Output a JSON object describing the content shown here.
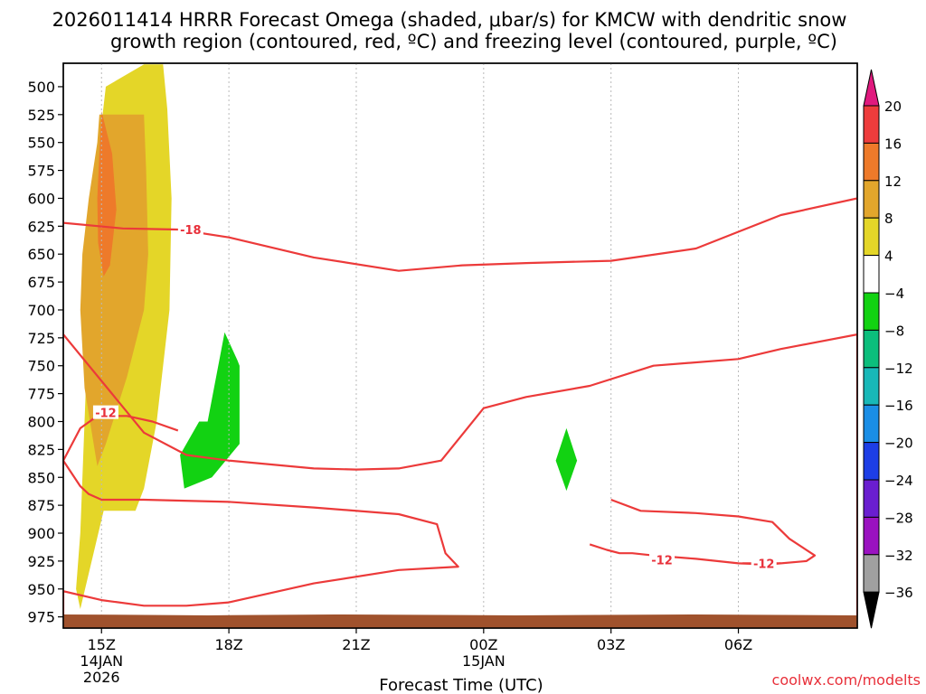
{
  "chart_data": {
    "type": "heatmap",
    "title_line1": "2026011414 HRRR Forecast Omega (shaded, μbar/s) for KMCW with dendritic snow",
    "title_line2": "growth region (contoured, red, ºC) and freezing level (contoured, purple, ºC)",
    "xlabel": "Forecast Time (UTC)",
    "credit": "coolwx.com/modelts",
    "x_hours_range": [
      -0.9,
      17.8
    ],
    "y_pressure_range": [
      479,
      985
    ],
    "y_ticks": [
      500,
      525,
      550,
      575,
      600,
      625,
      650,
      675,
      700,
      725,
      750,
      775,
      800,
      825,
      850,
      875,
      900,
      925,
      950,
      975
    ],
    "x_ticks": [
      {
        "hour": 0,
        "label": "15Z",
        "sub1": "14JAN",
        "sub2": "2026"
      },
      {
        "hour": 3,
        "label": "18Z",
        "sub1": "",
        "sub2": ""
      },
      {
        "hour": 6,
        "label": "21Z",
        "sub1": "",
        "sub2": ""
      },
      {
        "hour": 9,
        "label": "00Z",
        "sub1": "15JAN",
        "sub2": ""
      },
      {
        "hour": 12,
        "label": "03Z",
        "sub1": "",
        "sub2": ""
      },
      {
        "hour": 15,
        "label": "06Z",
        "sub1": "",
        "sub2": ""
      }
    ],
    "colorbar": {
      "labels": [
        "20",
        "16",
        "12",
        "8",
        "4",
        "−4",
        "−8",
        "−12",
        "−16",
        "−20",
        "−24",
        "−28",
        "−32",
        "−36"
      ],
      "colors": [
        "#ee3c3c",
        "#ee7a2a",
        "#e2a62c",
        "#e4d628",
        "#ffffff",
        "#12d212",
        "#0cbe7c",
        "#18b8b8",
        "#1a8ee6",
        "#1d3ee6",
        "#6a1ed0",
        "#9a12c0",
        "#a0a0a0"
      ],
      "top_arrow_color": "#e0197e",
      "bottom_arrow_color": "#000000"
    },
    "omega_regions": [
      {
        "level": "4 to 8",
        "color": "#e4d628",
        "points": [
          [
            -0.5,
            968
          ],
          [
            -0.6,
            950
          ],
          [
            -0.5,
            900
          ],
          [
            -0.4,
            800
          ],
          [
            -0.3,
            700
          ],
          [
            -0.2,
            600
          ],
          [
            0.1,
            500
          ],
          [
            1.0,
            480
          ],
          [
            1.45,
            480
          ],
          [
            1.55,
            520
          ],
          [
            1.65,
            600
          ],
          [
            1.6,
            700
          ],
          [
            1.3,
            800
          ],
          [
            1.0,
            860
          ],
          [
            0.8,
            880
          ],
          [
            0.05,
            880
          ]
        ]
      },
      {
        "level": "8 to 12",
        "color": "#e2a62c",
        "points": [
          [
            -0.4,
            770
          ],
          [
            -0.5,
            700
          ],
          [
            -0.45,
            650
          ],
          [
            -0.3,
            600
          ],
          [
            -0.1,
            550
          ],
          [
            -0.05,
            525
          ],
          [
            1.0,
            525
          ],
          [
            1.05,
            575
          ],
          [
            1.1,
            650
          ],
          [
            1.0,
            700
          ],
          [
            0.6,
            760
          ],
          [
            0.1,
            820
          ],
          [
            -0.1,
            840
          ]
        ]
      },
      {
        "level": "12 to 16",
        "color": "#ee7a2a",
        "points": [
          [
            -0.1,
            600
          ],
          [
            -0.05,
            560
          ],
          [
            0.0,
            522
          ],
          [
            0.25,
            560
          ],
          [
            0.35,
            610
          ],
          [
            0.2,
            660
          ],
          [
            0.05,
            670
          ],
          [
            -0.08,
            640
          ]
        ]
      },
      {
        "level": "-8 to -4",
        "color": "#12d212",
        "points": [
          [
            2.9,
            720
          ],
          [
            2.5,
            800
          ],
          [
            2.3,
            800
          ],
          [
            1.85,
            830
          ],
          [
            1.95,
            860
          ],
          [
            2.6,
            850
          ],
          [
            3.25,
            820
          ],
          [
            3.25,
            750
          ],
          [
            3.2,
            745
          ]
        ]
      },
      {
        "level": "-8 to -4",
        "color": "#12d212",
        "points": [
          [
            10.95,
            806
          ],
          [
            11.2,
            835
          ],
          [
            10.95,
            862
          ],
          [
            10.7,
            835
          ]
        ]
      }
    ],
    "contours_degC": [
      {
        "label": "-18",
        "label_at": [
          2.1,
          628
        ],
        "points": [
          [
            -0.9,
            622
          ],
          [
            0.5,
            627
          ],
          [
            1.8,
            628
          ],
          [
            3.0,
            635
          ],
          [
            5.0,
            653
          ],
          [
            7.0,
            665
          ],
          [
            8.5,
            660
          ],
          [
            10.0,
            658
          ],
          [
            12.0,
            656
          ],
          [
            14.0,
            645
          ],
          [
            15.0,
            630
          ],
          [
            16.0,
            615
          ],
          [
            17.8,
            600
          ]
        ]
      },
      {
        "label": "-12",
        "label_at": [
          0.1,
          792
        ],
        "points": [
          [
            -0.9,
            722
          ],
          [
            1.0,
            810
          ],
          [
            2.0,
            830
          ],
          [
            3.0,
            835
          ],
          [
            5.0,
            842
          ],
          [
            6.0,
            843
          ],
          [
            7.0,
            842
          ],
          [
            8.0,
            835
          ],
          [
            9.0,
            788
          ],
          [
            10.0,
            778
          ],
          [
            11.5,
            768
          ],
          [
            13.0,
            750
          ],
          [
            15.0,
            744
          ],
          [
            16.0,
            735
          ],
          [
            17.8,
            722
          ],
          [
            17.8,
            985
          ],
          [
            -0.9,
            985
          ],
          [
            -0.9,
            952
          ],
          [
            0.0,
            960
          ],
          [
            1.0,
            965
          ],
          [
            2.0,
            965
          ],
          [
            3.0,
            962
          ],
          [
            5.0,
            945
          ],
          [
            7.0,
            933
          ],
          [
            8.4,
            930
          ],
          [
            8.1,
            918
          ],
          [
            7.9,
            892
          ],
          [
            7.0,
            883
          ],
          [
            5.0,
            877
          ],
          [
            3.0,
            872
          ],
          [
            1.0,
            870
          ],
          [
            0.0,
            870
          ],
          [
            -0.3,
            865
          ],
          [
            -0.5,
            858
          ],
          [
            -0.9,
            835
          ],
          [
            -0.5,
            806
          ],
          [
            -0.1,
            795
          ],
          [
            0.6,
            795
          ],
          [
            1.2,
            800
          ],
          [
            1.8,
            808
          ]
        ]
      },
      {
        "label": "-12",
        "label_at": [
          13.2,
          924
        ],
        "points": [
          [
            12.0,
            870
          ],
          [
            12.7,
            880
          ],
          [
            14.0,
            882
          ],
          [
            15.0,
            885
          ],
          [
            15.8,
            890
          ],
          [
            16.2,
            905
          ],
          [
            16.8,
            920
          ],
          [
            16.6,
            925
          ],
          [
            15.7,
            928
          ],
          [
            15.0,
            927
          ],
          [
            14.0,
            923
          ],
          [
            13.0,
            920
          ],
          [
            12.5,
            918
          ],
          [
            12.2,
            918
          ],
          [
            11.9,
            915
          ],
          [
            11.5,
            910
          ]
        ]
      },
      {
        "label": "-12",
        "label_at": [
          15.6,
          927
        ],
        "points": [
          [
            15.1,
            927
          ],
          [
            16.0,
            927
          ]
        ]
      }
    ],
    "ground_layer_top_hpa": 972
  }
}
